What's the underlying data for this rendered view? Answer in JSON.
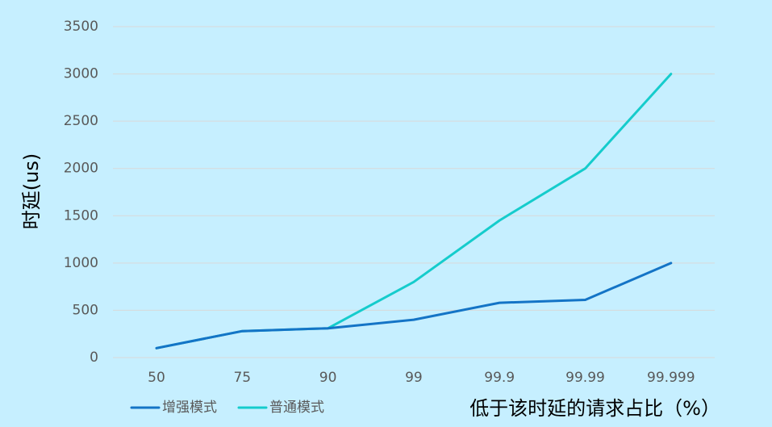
{
  "chart_data": {
    "type": "line",
    "categories": [
      "50",
      "75",
      "90",
      "99",
      "99.9",
      "99.99",
      "99.999"
    ],
    "series": [
      {
        "name": "增强模式",
        "values": [
          100,
          280,
          310,
          400,
          580,
          610,
          1000
        ],
        "color": "#1474c6"
      },
      {
        "name": "普通模式",
        "values": [
          100,
          280,
          310,
          800,
          1450,
          2000,
          3000
        ],
        "color": "#15cccc"
      }
    ],
    "ylabel": "时延(us)",
    "xlabel": "低于该时延的请求占比（%）",
    "ylim": [
      0,
      3500
    ],
    "yticks": [
      0,
      500,
      1000,
      1500,
      2000,
      2500,
      3000,
      3500
    ],
    "grid": true,
    "legend_position": "bottom-left"
  }
}
